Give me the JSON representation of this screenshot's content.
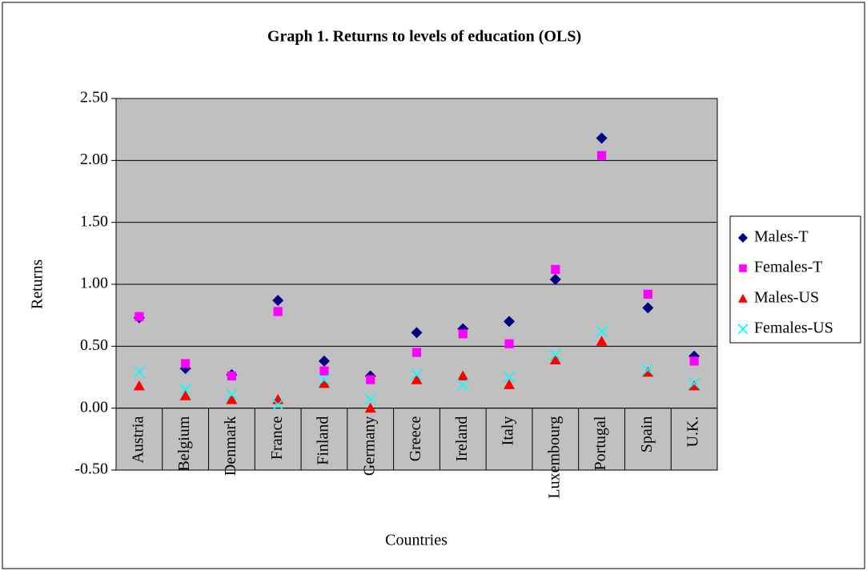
{
  "chart_data": {
    "type": "dot",
    "title": "Graph 1. Returns to levels of education (OLS)",
    "x_label": "Countries",
    "y_label": "Returns",
    "categories": [
      "Austria",
      "Belgium",
      "Denmark",
      "France",
      "Finland",
      "Germany",
      "Greece",
      "Ireland",
      "Italy",
      "Luxembourg",
      "Portugal",
      "Spain",
      "U.K."
    ],
    "series": [
      {
        "name": "Males-T",
        "color": "#000080",
        "marker": "diamond",
        "values": [
          0.73,
          0.32,
          0.27,
          0.87,
          0.38,
          0.26,
          0.61,
          0.64,
          0.7,
          1.04,
          2.18,
          0.81,
          0.42
        ]
      },
      {
        "name": "Females-T",
        "color": "#ff00ff",
        "marker": "square",
        "values": [
          0.74,
          0.36,
          0.26,
          0.78,
          0.3,
          0.23,
          0.45,
          0.6,
          0.52,
          1.12,
          2.04,
          0.92,
          0.38
        ]
      },
      {
        "name": "Males-US",
        "color": "#ff0000",
        "marker": "triangle",
        "values": [
          0.18,
          0.1,
          0.07,
          0.07,
          0.2,
          0.0,
          0.23,
          0.26,
          0.19,
          0.39,
          0.54,
          0.29,
          0.18
        ]
      },
      {
        "name": "Females-US",
        "color": "#00ffff",
        "marker": "x",
        "values": [
          0.29,
          0.15,
          0.11,
          0.03,
          0.23,
          0.07,
          0.27,
          0.19,
          0.25,
          0.43,
          0.62,
          0.31,
          0.2
        ]
      }
    ],
    "ylim": [
      -0.5,
      2.5
    ],
    "yticks": [
      {
        "value": -0.5,
        "label": "-0.50"
      },
      {
        "value": 0,
        "label": "0.00"
      },
      {
        "value": 0.5,
        "label": "0.50"
      },
      {
        "value": 1,
        "label": "1.00"
      },
      {
        "value": 1.5,
        "label": "1.50"
      },
      {
        "value": 2,
        "label": "2.00"
      },
      {
        "value": 2.5,
        "label": "2.50"
      }
    ],
    "grid": true,
    "legend": "right",
    "plot_background": "#c0c0c0"
  }
}
